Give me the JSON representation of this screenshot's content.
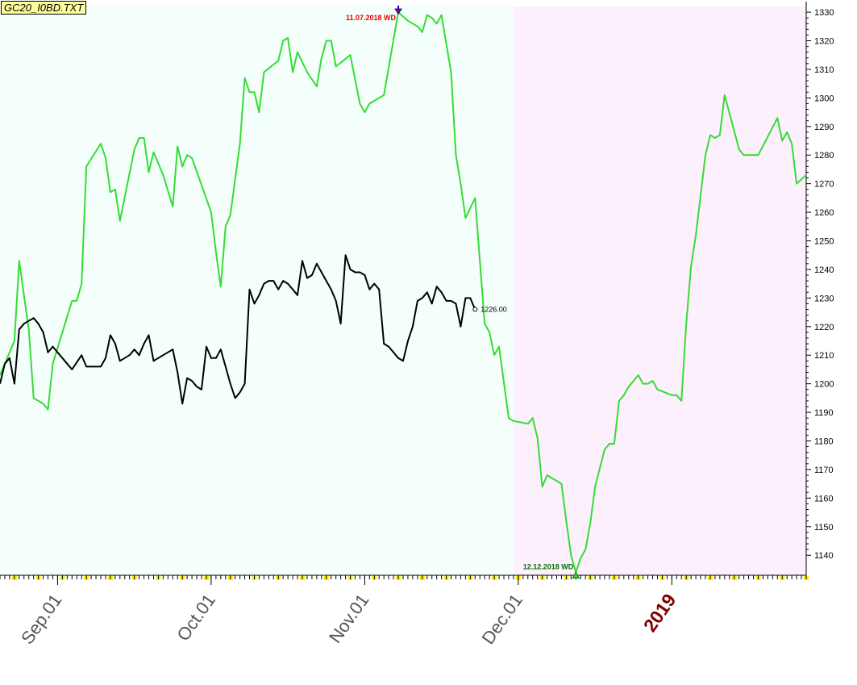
{
  "file_label": "GC20_I0BD.TXT",
  "chart_data": {
    "type": "line",
    "title": "",
    "xlabel": "",
    "ylabel": "",
    "ylim": [
      1133,
      1332
    ],
    "xlim": [
      0,
      168
    ],
    "x_unit": "trading-day index (Aug 14 2018 = 0)",
    "yticks": [
      1140,
      1150,
      1160,
      1170,
      1180,
      1190,
      1200,
      1210,
      1220,
      1230,
      1240,
      1250,
      1260,
      1270,
      1280,
      1290,
      1300,
      1310,
      1320,
      1330
    ],
    "xticks": [
      {
        "label": "Sep.01",
        "x": 12,
        "style": "month"
      },
      {
        "label": "Oct.01",
        "x": 44,
        "style": "month"
      },
      {
        "label": "Nov.01",
        "x": 76,
        "style": "month"
      },
      {
        "label": "Dec.01",
        "x": 108,
        "style": "month"
      },
      {
        "label": "2019",
        "x": 140,
        "style": "year"
      }
    ],
    "background_regions": [
      {
        "x_from": 0,
        "x_to": 107,
        "color": "#f4fffb"
      },
      {
        "x_from": 107,
        "x_to": 168,
        "color": "#fdf0fd"
      }
    ],
    "grid": false,
    "legend": "none",
    "series": [
      {
        "color": "#33dd33",
        "points": [
          [
            0,
            1203
          ],
          [
            2,
            1211
          ],
          [
            3,
            1215
          ],
          [
            4,
            1243
          ],
          [
            6,
            1219
          ],
          [
            7,
            1195
          ],
          [
            9,
            1193
          ],
          [
            10,
            1191
          ],
          [
            11,
            1207
          ],
          [
            15,
            1229
          ],
          [
            16,
            1229
          ],
          [
            17,
            1235
          ],
          [
            18,
            1276
          ],
          [
            21,
            1284
          ],
          [
            22,
            1279
          ],
          [
            23,
            1267
          ],
          [
            24,
            1268
          ],
          [
            25,
            1257
          ],
          [
            28,
            1282
          ],
          [
            29,
            1286
          ],
          [
            30,
            1286
          ],
          [
            31,
            1274
          ],
          [
            32,
            1281
          ],
          [
            34,
            1273
          ],
          [
            36,
            1262
          ],
          [
            37,
            1283
          ],
          [
            38,
            1276
          ],
          [
            39,
            1280
          ],
          [
            40,
            1279
          ],
          [
            44,
            1260
          ],
          [
            45,
            1246
          ],
          [
            46,
            1234
          ],
          [
            47,
            1255
          ],
          [
            48,
            1259
          ],
          [
            50,
            1284
          ],
          [
            51,
            1307
          ],
          [
            52,
            1302
          ],
          [
            53,
            1302
          ],
          [
            54,
            1295
          ],
          [
            55,
            1309
          ],
          [
            58,
            1313
          ],
          [
            59,
            1320
          ],
          [
            60,
            1321
          ],
          [
            61,
            1309
          ],
          [
            62,
            1316
          ],
          [
            64,
            1309
          ],
          [
            66,
            1304
          ],
          [
            67,
            1314
          ],
          [
            68,
            1320
          ],
          [
            69,
            1320
          ],
          [
            70,
            1311
          ],
          [
            73,
            1315
          ],
          [
            75,
            1298
          ],
          [
            76,
            1295
          ],
          [
            77,
            1298
          ],
          [
            80,
            1301
          ],
          [
            83,
            1330
          ],
          [
            85,
            1327
          ],
          [
            87,
            1325
          ],
          [
            88,
            1323
          ],
          [
            89,
            1329
          ],
          [
            90,
            1328
          ],
          [
            91,
            1326
          ],
          [
            92,
            1329
          ],
          [
            94,
            1309
          ],
          [
            95,
            1280
          ],
          [
            96,
            1270
          ],
          [
            97,
            1258
          ],
          [
            99,
            1265
          ],
          [
            100,
            1243
          ],
          [
            101,
            1221
          ],
          [
            102,
            1218
          ],
          [
            103,
            1210
          ],
          [
            104,
            1213
          ],
          [
            106,
            1188
          ],
          [
            107,
            1187
          ],
          [
            110,
            1186
          ],
          [
            111,
            1188
          ],
          [
            112,
            1181
          ],
          [
            113,
            1164
          ],
          [
            114,
            1168
          ],
          [
            115,
            1167
          ],
          [
            117,
            1165
          ],
          [
            118,
            1152
          ],
          [
            119,
            1140
          ],
          [
            120,
            1134
          ],
          [
            121,
            1139
          ],
          [
            122,
            1142
          ],
          [
            123,
            1151
          ],
          [
            124,
            1164
          ],
          [
            126,
            1177
          ],
          [
            127,
            1179
          ],
          [
            128,
            1179
          ],
          [
            129,
            1194
          ],
          [
            130,
            1196
          ],
          [
            131,
            1199
          ],
          [
            133,
            1203
          ],
          [
            134,
            1200
          ],
          [
            135,
            1200
          ],
          [
            136,
            1201
          ],
          [
            137,
            1198
          ],
          [
            140,
            1196
          ],
          [
            141,
            1196
          ],
          [
            142,
            1194
          ],
          [
            143,
            1221
          ],
          [
            144,
            1241
          ],
          [
            145,
            1252
          ],
          [
            147,
            1280
          ],
          [
            148,
            1287
          ],
          [
            149,
            1286
          ],
          [
            150,
            1287
          ],
          [
            151,
            1301
          ],
          [
            154,
            1282
          ],
          [
            155,
            1280
          ],
          [
            158,
            1280
          ],
          [
            162,
            1293
          ],
          [
            163,
            1285
          ],
          [
            164,
            1288
          ],
          [
            165,
            1284
          ],
          [
            166,
            1270
          ],
          [
            168,
            1273
          ]
        ]
      },
      {
        "color": "#000000",
        "points": [
          [
            0,
            1200
          ],
          [
            1,
            1207
          ],
          [
            2,
            1209
          ],
          [
            3,
            1200
          ],
          [
            4,
            1219
          ],
          [
            5,
            1221
          ],
          [
            6,
            1222
          ],
          [
            7,
            1223
          ],
          [
            8,
            1221
          ],
          [
            9,
            1218
          ],
          [
            10,
            1211
          ],
          [
            11,
            1213
          ],
          [
            12,
            1211
          ],
          [
            13,
            1209
          ],
          [
            14,
            1207
          ],
          [
            15,
            1205
          ],
          [
            17,
            1210
          ],
          [
            18,
            1206
          ],
          [
            20,
            1206
          ],
          [
            21,
            1206
          ],
          [
            22,
            1209
          ],
          [
            23,
            1217
          ],
          [
            24,
            1214
          ],
          [
            25,
            1208
          ],
          [
            27,
            1210
          ],
          [
            28,
            1212
          ],
          [
            29,
            1210
          ],
          [
            30,
            1214
          ],
          [
            31,
            1217
          ],
          [
            32,
            1208
          ],
          [
            34,
            1210
          ],
          [
            35,
            1211
          ],
          [
            36,
            1212
          ],
          [
            37,
            1204
          ],
          [
            38,
            1193
          ],
          [
            39,
            1202
          ],
          [
            40,
            1201
          ],
          [
            41,
            1199
          ],
          [
            42,
            1198
          ],
          [
            43,
            1213
          ],
          [
            44,
            1209
          ],
          [
            45,
            1209
          ],
          [
            46,
            1212
          ],
          [
            47,
            1206
          ],
          [
            48,
            1200
          ],
          [
            49,
            1195
          ],
          [
            50,
            1197
          ],
          [
            51,
            1200
          ],
          [
            52,
            1233
          ],
          [
            53,
            1228
          ],
          [
            54,
            1231
          ],
          [
            55,
            1235
          ],
          [
            56,
            1236
          ],
          [
            57,
            1236
          ],
          [
            58,
            1233
          ],
          [
            59,
            1236
          ],
          [
            60,
            1235
          ],
          [
            61,
            1233
          ],
          [
            62,
            1231
          ],
          [
            63,
            1243
          ],
          [
            64,
            1237
          ],
          [
            65,
            1238
          ],
          [
            66,
            1242
          ],
          [
            67,
            1239
          ],
          [
            69,
            1233
          ],
          [
            70,
            1229
          ],
          [
            71,
            1221
          ],
          [
            72,
            1245
          ],
          [
            73,
            1240
          ],
          [
            74,
            1239
          ],
          [
            75,
            1239
          ],
          [
            76,
            1238
          ],
          [
            77,
            1233
          ],
          [
            78,
            1235
          ],
          [
            79,
            1233
          ],
          [
            80,
            1214
          ],
          [
            81,
            1213
          ],
          [
            82,
            1211
          ],
          [
            83,
            1209
          ],
          [
            84,
            1208
          ],
          [
            85,
            1215
          ],
          [
            86,
            1220
          ],
          [
            87,
            1229
          ],
          [
            88,
            1230
          ],
          [
            89,
            1232
          ],
          [
            90,
            1228
          ],
          [
            91,
            1234
          ],
          [
            92,
            1232
          ],
          [
            93,
            1229
          ],
          [
            94,
            1229
          ],
          [
            95,
            1228
          ],
          [
            96,
            1220
          ],
          [
            97,
            1230
          ],
          [
            98,
            1230
          ],
          [
            99,
            1226
          ]
        ]
      }
    ],
    "annotations": [
      {
        "text": "11.07.2018 WD",
        "x": 83,
        "y": 1330,
        "kind": "high-marker"
      },
      {
        "text": "12.12.2018 WD",
        "x": 120,
        "y": 1134,
        "kind": "low-marker"
      },
      {
        "text": "1226.00",
        "x": 99,
        "y": 1226,
        "kind": "last-value"
      }
    ]
  }
}
